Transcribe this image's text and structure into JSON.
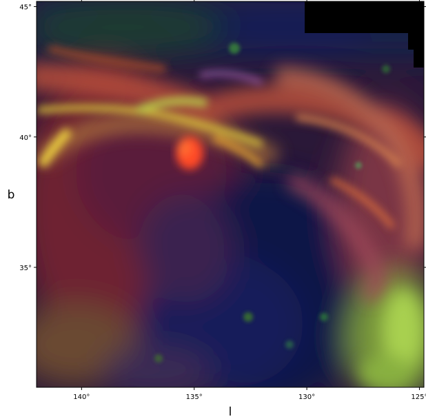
{
  "chart_data": {
    "type": "heatmap",
    "title": "",
    "xlabel": "l",
    "ylabel": "b",
    "xlim": [
      142,
      124.8
    ],
    "ylim": [
      30.4,
      45.2
    ],
    "xticks": [
      {
        "value": 140,
        "label": "140°"
      },
      {
        "value": 135,
        "label": "135°"
      },
      {
        "value": 130,
        "label": "130°"
      },
      {
        "value": 125,
        "label": "125°"
      }
    ],
    "yticks": [
      {
        "value": 45,
        "label": "45°"
      },
      {
        "value": 40,
        "label": "40°"
      },
      {
        "value": 35,
        "label": "35°"
      }
    ],
    "grid": false,
    "colors": {
      "background_shell": "#8a2a2e",
      "cavity": "#10134a",
      "filaments_orange": "#e0803a",
      "filaments_yellow": "#d8cc3a",
      "filaments_green": "#6fbf3c",
      "hot_spot": "#ff4422",
      "no_data": "#000000",
      "frame": "#000000"
    }
  }
}
